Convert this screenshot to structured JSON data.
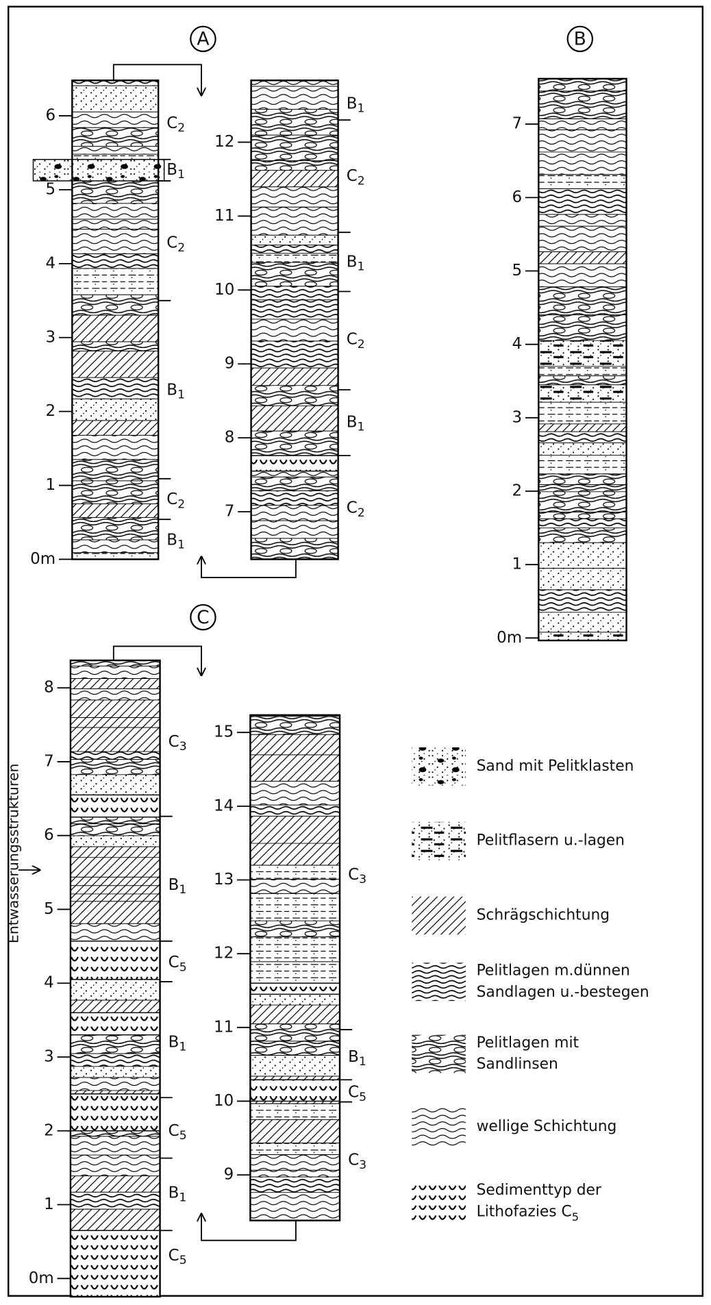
{
  "panels": [
    {
      "label": "A",
      "columns": [
        {
          "ticks": [
            "0m",
            "1",
            "2",
            "3",
            "4",
            "5",
            "6"
          ],
          "facies": [
            "C2",
            "B1",
            "C2",
            "B1",
            "C2",
            "B1"
          ]
        },
        {
          "ticks": [
            "7",
            "8",
            "9",
            "10",
            "11",
            "12"
          ],
          "facies": [
            "B1",
            "C2",
            "B1",
            "C2",
            "B1",
            "C2"
          ]
        }
      ]
    },
    {
      "label": "B",
      "columns": [
        {
          "ticks": [
            "0m",
            "1",
            "2",
            "3",
            "4",
            "5",
            "6",
            "7"
          ]
        }
      ]
    },
    {
      "label": "C",
      "side_label": "Entwässerungsstrukturen",
      "columns": [
        {
          "ticks": [
            "0m",
            "1",
            "2",
            "3",
            "4",
            "5",
            "6",
            "7",
            "8"
          ],
          "facies": [
            "C3",
            "B1",
            "C5",
            "B1",
            "C5",
            "B1",
            "C5"
          ]
        },
        {
          "ticks": [
            "9",
            "10",
            "11",
            "12",
            "13",
            "14",
            "15"
          ],
          "facies": [
            "C3",
            "B1",
            "C5",
            "C3"
          ]
        }
      ]
    }
  ],
  "legend": [
    {
      "lines": [
        "Sand mit Pelitklasten"
      ]
    },
    {
      "lines": [
        "Pelitflasern u.-lagen"
      ]
    },
    {
      "lines": [
        "Schrägschichtung"
      ]
    },
    {
      "lines": [
        "Pelitlagen m.dünnen",
        "Sandlagen u.-bestegen"
      ]
    },
    {
      "lines": [
        "Pelitlagen mit",
        "Sandlinsen"
      ]
    },
    {
      "lines": [
        "wellige Schichtung"
      ]
    },
    {
      "lines": [
        "Sedimenttyp der",
        "Lithofazies C5"
      ]
    }
  ]
}
